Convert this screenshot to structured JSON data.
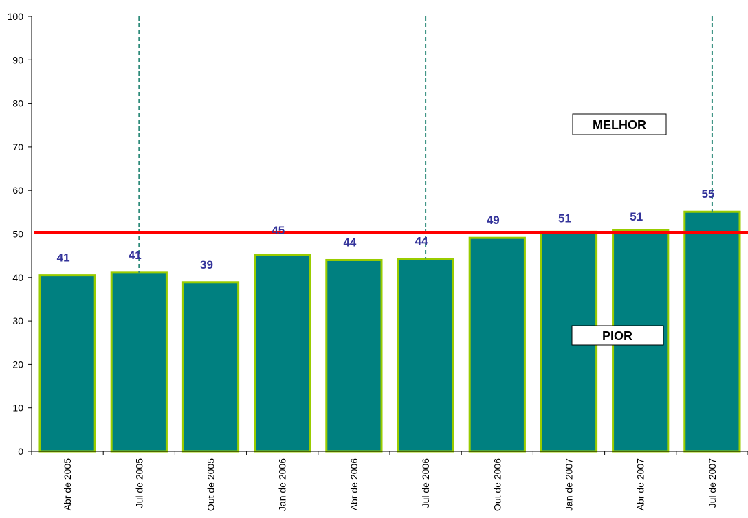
{
  "chart_data": {
    "type": "bar",
    "categories": [
      "Abr de 2005",
      "Jul de  2005",
      "Out de 2005",
      "Jan de 2006",
      "Abr de 2006",
      "Jul de  2006",
      "Out de 2006",
      "Jan de 2007",
      "Abr de 2007",
      "Jul de  2007"
    ],
    "values": [
      40.5,
      41.1,
      38.9,
      45.2,
      44.0,
      44.3,
      49.1,
      50.5,
      50.9,
      55.1
    ],
    "data_labels": [
      "41",
      "41",
      "39",
      "45",
      "44",
      "44",
      "49",
      "51",
      "51",
      "55"
    ],
    "title": "",
    "xlabel": "",
    "ylabel": "",
    "ylim": [
      0,
      100
    ],
    "yticks": [
      "0",
      "10",
      "20",
      "30",
      "40",
      "50",
      "60",
      "70",
      "80",
      "90",
      "100"
    ],
    "reference_line": {
      "value": 50.4,
      "color": "#ff0000"
    },
    "vertical_markers": {
      "after_categories": [
        1,
        5,
        9
      ],
      "color": "#2e8b7a",
      "style": "dashed"
    },
    "annotations": {
      "better": "MELHOR",
      "worse": "PIOR"
    },
    "grid": false,
    "legend": "none",
    "bar_fill": "#008080",
    "bar_edge": "#99cc00",
    "label_color": "#33339a"
  }
}
